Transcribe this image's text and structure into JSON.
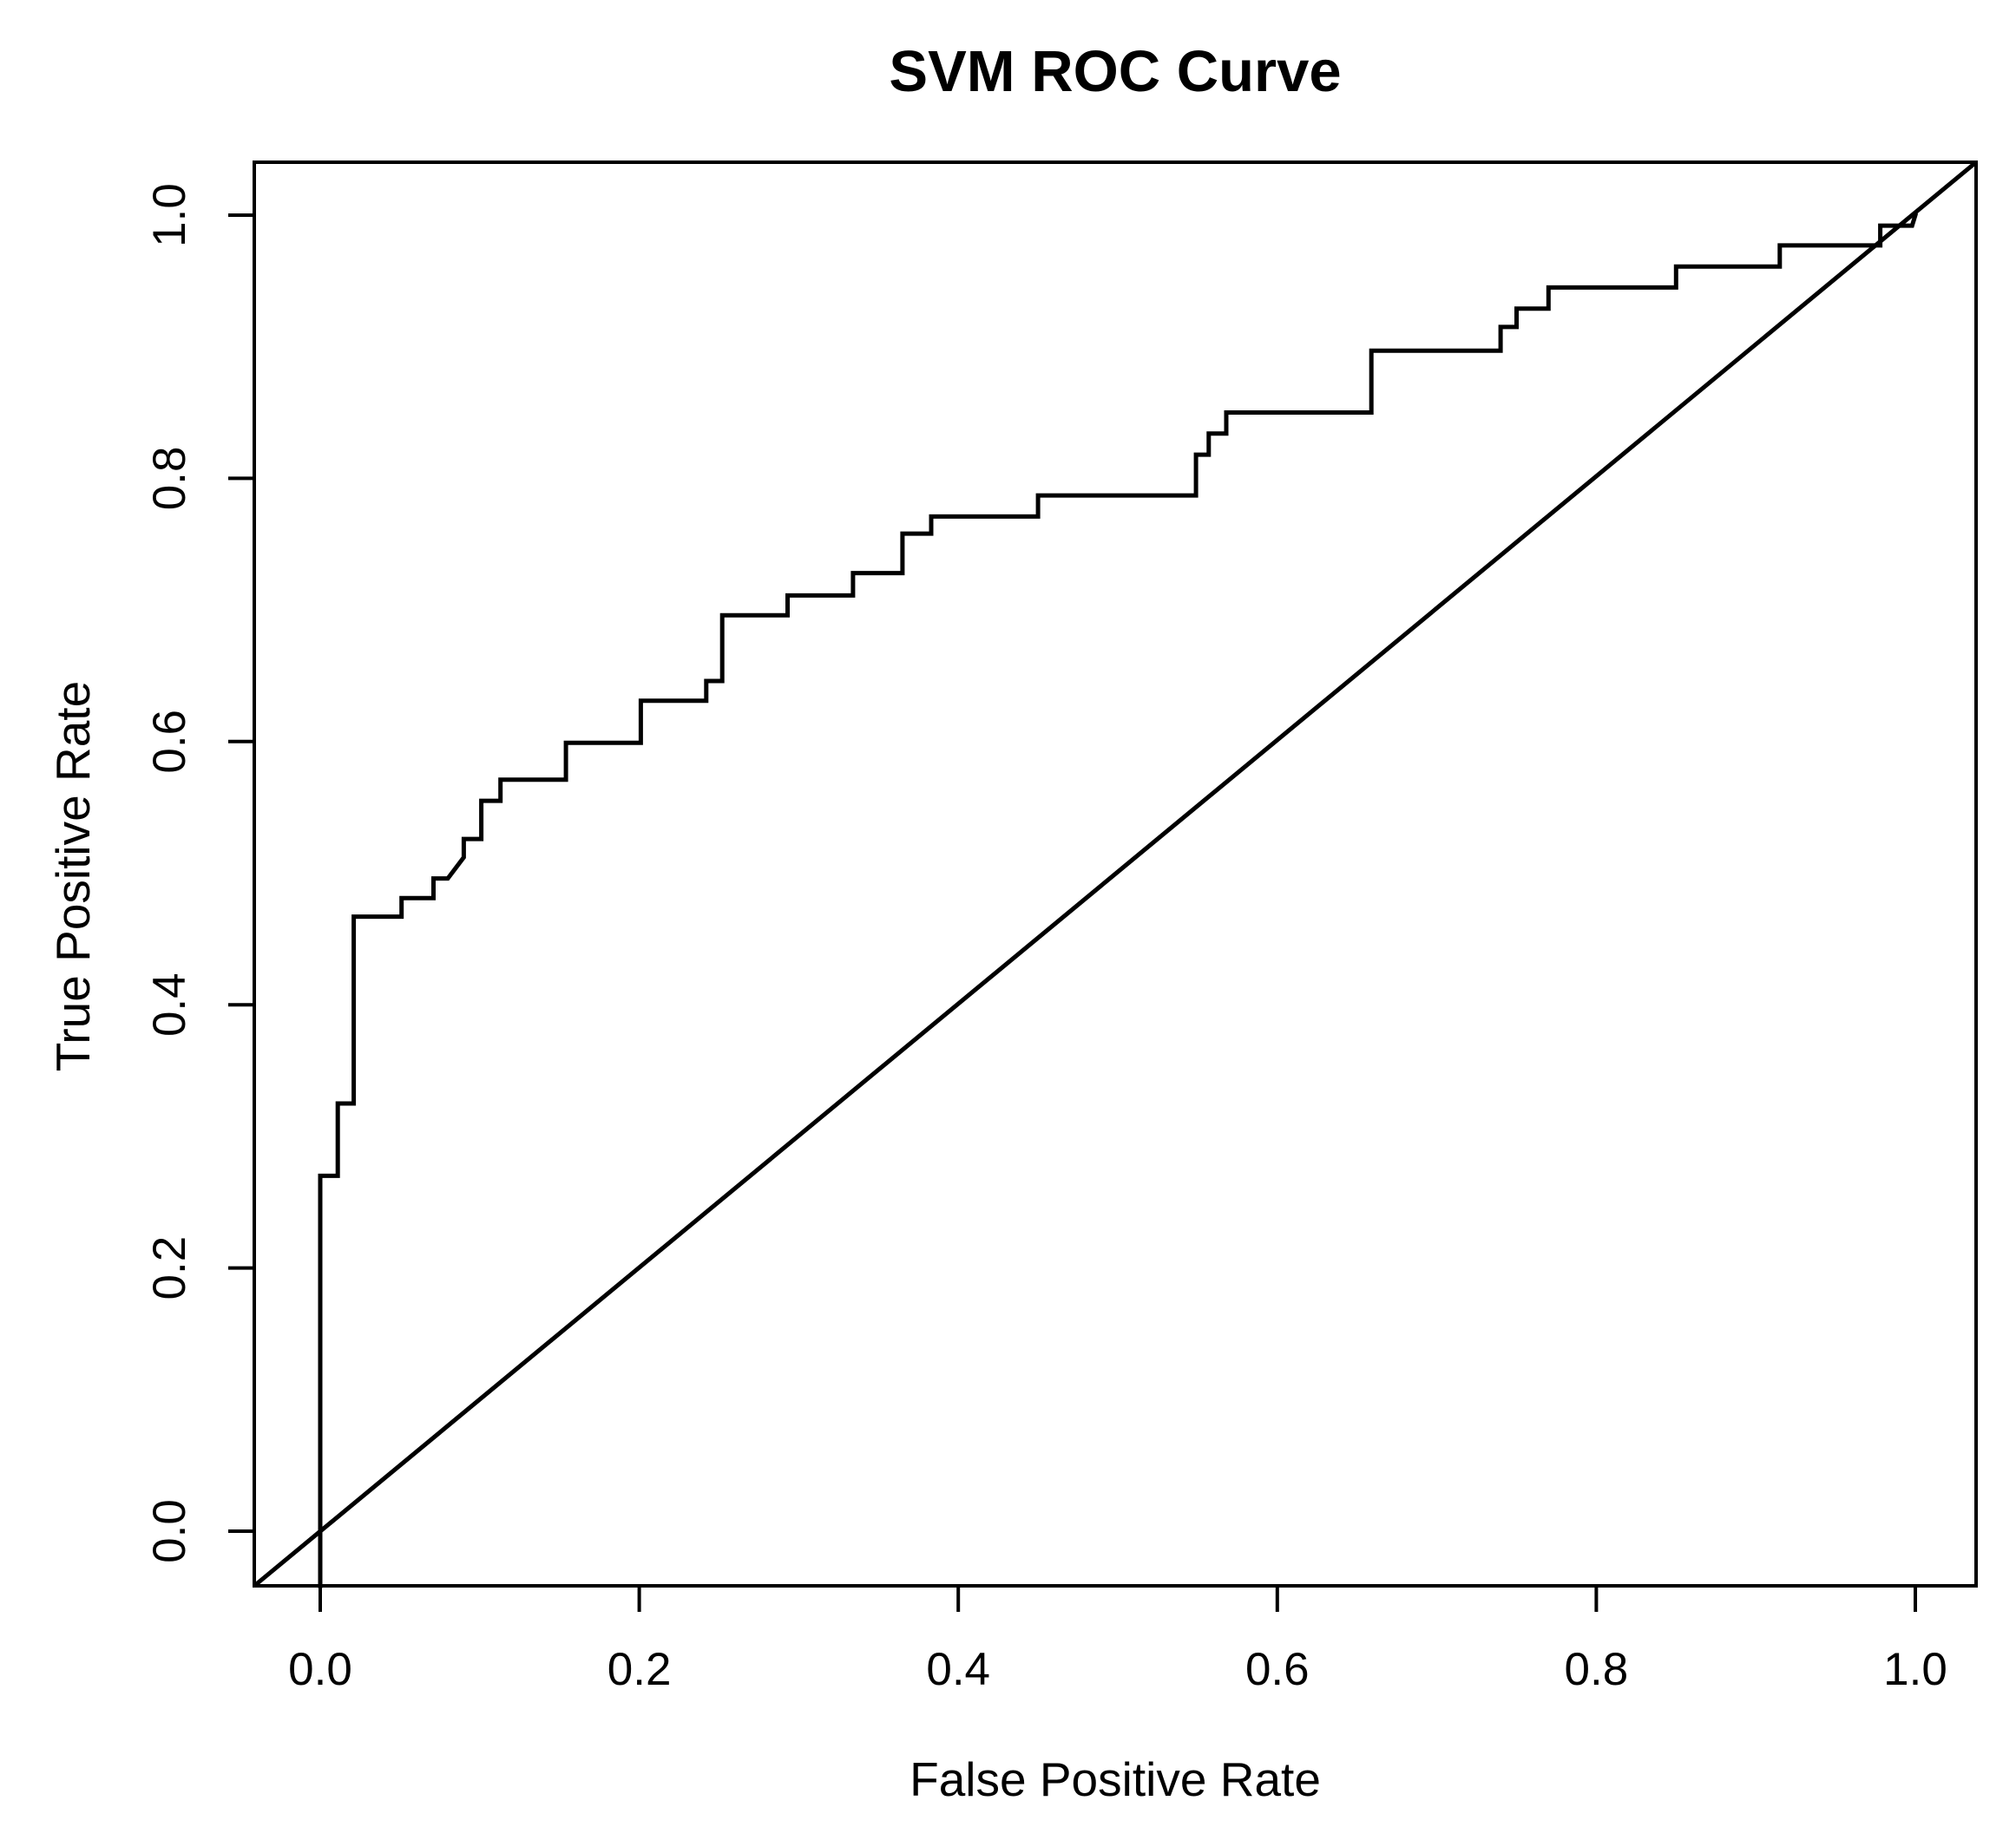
{
  "figure": {
    "background_color": "#ffffff",
    "foreground_color": "#000000"
  },
  "chart_data": {
    "type": "line",
    "title": "SVM ROC Curve",
    "xlabel": "False Positive Rate",
    "ylabel": "True Positive Rate",
    "xlim": [
      -0.04,
      1.04
    ],
    "ylim": [
      -0.04,
      1.04
    ],
    "grid": false,
    "legend": "none",
    "x_ticks": [
      0.0,
      0.2,
      0.4,
      0.6,
      0.8,
      1.0
    ],
    "y_ticks": [
      0.0,
      0.2,
      0.4,
      0.6,
      0.8,
      1.0
    ],
    "x_tick_labels": [
      "0.0",
      "0.2",
      "0.4",
      "0.6",
      "0.8",
      "1.0"
    ],
    "y_tick_labels": [
      "0.0",
      "0.2",
      "0.4",
      "0.6",
      "0.8",
      "1.0"
    ],
    "series": [
      {
        "name": "SVM ROC curve",
        "style": "step",
        "color": "#000000",
        "starts_at_bottom_frame": true,
        "points": [
          [
            0.0,
            0.27
          ],
          [
            0.011,
            0.27
          ],
          [
            0.011,
            0.325
          ],
          [
            0.021,
            0.325
          ],
          [
            0.021,
            0.467
          ],
          [
            0.051,
            0.467
          ],
          [
            0.051,
            0.481
          ],
          [
            0.071,
            0.481
          ],
          [
            0.071,
            0.496
          ],
          [
            0.08,
            0.496
          ],
          [
            0.09,
            0.512
          ],
          [
            0.09,
            0.526
          ],
          [
            0.101,
            0.526
          ],
          [
            0.101,
            0.555
          ],
          [
            0.113,
            0.555
          ],
          [
            0.113,
            0.571
          ],
          [
            0.154,
            0.571
          ],
          [
            0.154,
            0.599
          ],
          [
            0.201,
            0.599
          ],
          [
            0.201,
            0.631
          ],
          [
            0.242,
            0.631
          ],
          [
            0.242,
            0.646
          ],
          [
            0.252,
            0.646
          ],
          [
            0.252,
            0.696
          ],
          [
            0.293,
            0.696
          ],
          [
            0.293,
            0.711
          ],
          [
            0.334,
            0.711
          ],
          [
            0.334,
            0.728
          ],
          [
            0.365,
            0.728
          ],
          [
            0.365,
            0.758
          ],
          [
            0.383,
            0.758
          ],
          [
            0.383,
            0.771
          ],
          [
            0.45,
            0.771
          ],
          [
            0.45,
            0.787
          ],
          [
            0.549,
            0.787
          ],
          [
            0.549,
            0.818
          ],
          [
            0.557,
            0.818
          ],
          [
            0.557,
            0.834
          ],
          [
            0.568,
            0.834
          ],
          [
            0.568,
            0.85
          ],
          [
            0.659,
            0.85
          ],
          [
            0.659,
            0.897
          ],
          [
            0.74,
            0.897
          ],
          [
            0.74,
            0.915
          ],
          [
            0.75,
            0.915
          ],
          [
            0.75,
            0.929
          ],
          [
            0.77,
            0.929
          ],
          [
            0.77,
            0.945
          ],
          [
            0.85,
            0.945
          ],
          [
            0.85,
            0.961
          ],
          [
            0.915,
            0.961
          ],
          [
            0.915,
            0.977
          ],
          [
            0.978,
            0.977
          ],
          [
            0.978,
            0.992
          ],
          [
            0.998,
            0.992
          ],
          [
            1.0,
            1.0
          ]
        ]
      },
      {
        "name": "chance diagonal",
        "style": "straight-line",
        "color": "#000000",
        "from": [
          0.0,
          0.0
        ],
        "to": [
          1.0,
          1.0
        ],
        "extends_to_frame_corners": true
      }
    ]
  }
}
